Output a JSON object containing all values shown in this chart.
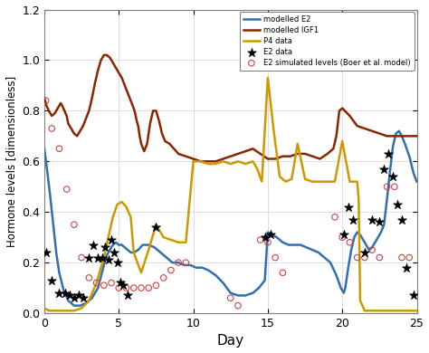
{
  "xlabel": "Day",
  "ylabel": "Hormone levels [dimensionless]",
  "xlim": [
    0,
    25
  ],
  "ylim": [
    0,
    1.2
  ],
  "yticks": [
    0,
    0.2,
    0.4,
    0.6,
    0.8,
    1.0,
    1.2
  ],
  "xticks": [
    0,
    5,
    10,
    15,
    20,
    25
  ],
  "color_E2": "#3070b0",
  "color_IGF1": "#8B2500",
  "color_P4": "#CC9900",
  "color_E2data": "black",
  "color_E2sim": "#cc4444",
  "modelled_E2_x": [
    0,
    0.2,
    0.4,
    0.6,
    0.8,
    1.0,
    1.3,
    1.6,
    2.0,
    2.4,
    2.8,
    3.2,
    3.6,
    4.0,
    4.2,
    4.4,
    4.6,
    4.8,
    5.0,
    5.2,
    5.4,
    5.6,
    5.8,
    6.0,
    6.3,
    6.6,
    7.0,
    7.4,
    7.8,
    8.2,
    8.6,
    9.0,
    9.4,
    9.8,
    10.2,
    10.6,
    11.0,
    11.5,
    12.0,
    12.5,
    13.0,
    13.5,
    14.0,
    14.4,
    14.8,
    15.0,
    15.3,
    15.6,
    16.0,
    16.4,
    16.8,
    17.2,
    17.6,
    18.0,
    18.4,
    18.8,
    19.2,
    19.6,
    19.9,
    20.1,
    20.2,
    20.4,
    20.6,
    20.8,
    21.0,
    21.2,
    21.5,
    21.8,
    22.0,
    22.2,
    22.4,
    22.6,
    22.8,
    23.0,
    23.2,
    23.4,
    23.6,
    23.8,
    24.0,
    24.2,
    24.5,
    24.8,
    25.0
  ],
  "modelled_E2_y": [
    0.65,
    0.56,
    0.46,
    0.35,
    0.24,
    0.16,
    0.09,
    0.05,
    0.03,
    0.03,
    0.04,
    0.06,
    0.1,
    0.19,
    0.23,
    0.25,
    0.27,
    0.28,
    0.27,
    0.27,
    0.26,
    0.25,
    0.24,
    0.24,
    0.25,
    0.27,
    0.27,
    0.26,
    0.24,
    0.22,
    0.2,
    0.2,
    0.19,
    0.19,
    0.18,
    0.18,
    0.17,
    0.15,
    0.12,
    0.08,
    0.07,
    0.07,
    0.08,
    0.1,
    0.13,
    0.32,
    0.31,
    0.3,
    0.28,
    0.27,
    0.27,
    0.27,
    0.26,
    0.25,
    0.24,
    0.22,
    0.2,
    0.15,
    0.1,
    0.08,
    0.1,
    0.18,
    0.25,
    0.3,
    0.32,
    0.31,
    0.28,
    0.25,
    0.26,
    0.28,
    0.3,
    0.32,
    0.35,
    0.45,
    0.56,
    0.66,
    0.71,
    0.72,
    0.7,
    0.67,
    0.62,
    0.55,
    0.52
  ],
  "modelled_IGF1_x": [
    0,
    0.15,
    0.3,
    0.5,
    0.7,
    0.9,
    1.0,
    1.1,
    1.2,
    1.35,
    1.5,
    1.6,
    1.7,
    1.8,
    2.0,
    2.2,
    2.4,
    2.6,
    2.8,
    3.0,
    3.2,
    3.4,
    3.6,
    3.8,
    4.0,
    4.2,
    4.4,
    4.6,
    4.8,
    5.0,
    5.2,
    5.4,
    5.6,
    5.8,
    6.0,
    6.1,
    6.2,
    6.3,
    6.4,
    6.5,
    6.7,
    6.9,
    7.1,
    7.3,
    7.5,
    7.7,
    7.9,
    8.1,
    8.4,
    8.7,
    9.0,
    9.5,
    10.0,
    10.5,
    11.0,
    11.5,
    12.0,
    12.5,
    13.0,
    13.5,
    14.0,
    14.5,
    15.0,
    15.5,
    16.0,
    16.5,
    17.0,
    17.5,
    18.0,
    18.5,
    19.0,
    19.4,
    19.6,
    19.8,
    20.0,
    20.5,
    21.0,
    21.5,
    22.0,
    22.5,
    23.0,
    23.5,
    24.0,
    24.5,
    25.0
  ],
  "modelled_IGF1_y": [
    0.85,
    0.82,
    0.8,
    0.78,
    0.79,
    0.81,
    0.82,
    0.83,
    0.82,
    0.8,
    0.78,
    0.75,
    0.74,
    0.73,
    0.71,
    0.7,
    0.72,
    0.74,
    0.77,
    0.8,
    0.85,
    0.91,
    0.96,
    1.0,
    1.02,
    1.02,
    1.01,
    0.99,
    0.97,
    0.95,
    0.93,
    0.9,
    0.87,
    0.84,
    0.81,
    0.79,
    0.76,
    0.74,
    0.7,
    0.67,
    0.64,
    0.67,
    0.75,
    0.8,
    0.8,
    0.76,
    0.71,
    0.68,
    0.67,
    0.65,
    0.63,
    0.62,
    0.61,
    0.6,
    0.6,
    0.6,
    0.61,
    0.62,
    0.63,
    0.64,
    0.65,
    0.63,
    0.61,
    0.61,
    0.62,
    0.62,
    0.63,
    0.63,
    0.62,
    0.61,
    0.63,
    0.65,
    0.7,
    0.8,
    0.81,
    0.78,
    0.74,
    0.73,
    0.72,
    0.71,
    0.7,
    0.7,
    0.7,
    0.7,
    0.7
  ],
  "P4_x": [
    0,
    0.3,
    0.6,
    1.0,
    1.5,
    2.0,
    2.5,
    3.0,
    3.5,
    4.0,
    4.3,
    4.6,
    4.9,
    5.2,
    5.5,
    5.8,
    6.0,
    6.5,
    7.0,
    7.5,
    8.0,
    8.5,
    9.0,
    9.5,
    10.0,
    10.5,
    11.0,
    11.5,
    12.0,
    12.5,
    13.0,
    13.5,
    14.0,
    14.3,
    14.6,
    15.0,
    15.4,
    15.8,
    16.2,
    16.6,
    17.0,
    17.5,
    18.0,
    18.5,
    19.0,
    19.5,
    20.0,
    20.5,
    21.0,
    21.1,
    21.2,
    21.5,
    22.0,
    22.5,
    23.0,
    23.5,
    24.0,
    24.5,
    25.0
  ],
  "P4_y": [
    0.02,
    0.01,
    0.01,
    0.01,
    0.01,
    0.01,
    0.02,
    0.05,
    0.12,
    0.22,
    0.3,
    0.38,
    0.43,
    0.44,
    0.42,
    0.38,
    0.24,
    0.16,
    0.25,
    0.35,
    0.3,
    0.29,
    0.28,
    0.28,
    0.6,
    0.6,
    0.59,
    0.59,
    0.6,
    0.59,
    0.6,
    0.59,
    0.6,
    0.57,
    0.52,
    0.93,
    0.72,
    0.54,
    0.52,
    0.53,
    0.67,
    0.53,
    0.52,
    0.52,
    0.52,
    0.52,
    0.68,
    0.52,
    0.52,
    0.45,
    0.05,
    0.01,
    0.01,
    0.01,
    0.01,
    0.01,
    0.01,
    0.01,
    0.01
  ],
  "E2_data_x": [
    0.1,
    0.5,
    1.0,
    1.4,
    1.7,
    2.0,
    2.3,
    2.6,
    3.0,
    3.3,
    3.6,
    3.9,
    4.1,
    4.3,
    4.5,
    4.7,
    4.9,
    5.1,
    5.3,
    5.6,
    7.5,
    14.8,
    15.2,
    20.1,
    20.4,
    20.7,
    21.5,
    22.0,
    22.5,
    22.8,
    23.1,
    23.4,
    23.7,
    24.0,
    24.3,
    24.8
  ],
  "E2_data_y": [
    0.24,
    0.13,
    0.08,
    0.08,
    0.07,
    0.06,
    0.07,
    0.06,
    0.22,
    0.27,
    0.22,
    0.22,
    0.26,
    0.21,
    0.29,
    0.24,
    0.2,
    0.12,
    0.11,
    0.07,
    0.34,
    0.3,
    0.31,
    0.31,
    0.42,
    0.37,
    0.24,
    0.37,
    0.36,
    0.57,
    0.63,
    0.54,
    0.43,
    0.37,
    0.18,
    0.07
  ],
  "E2_sim_x": [
    0.1,
    0.5,
    1.0,
    1.5,
    2.0,
    2.5,
    3.0,
    3.5,
    4.0,
    4.5,
    5.0,
    5.5,
    6.0,
    6.5,
    7.0,
    7.5,
    8.0,
    8.5,
    9.0,
    9.5,
    12.5,
    13.0,
    14.5,
    15.0,
    15.5,
    16.0,
    19.5,
    20.0,
    20.5,
    21.0,
    21.5,
    22.0,
    22.5,
    23.0,
    23.5,
    24.0,
    24.5
  ],
  "E2_sim_y": [
    0.84,
    0.73,
    0.65,
    0.49,
    0.35,
    0.22,
    0.14,
    0.12,
    0.11,
    0.12,
    0.1,
    0.1,
    0.1,
    0.1,
    0.1,
    0.11,
    0.14,
    0.17,
    0.2,
    0.2,
    0.06,
    0.03,
    0.29,
    0.28,
    0.22,
    0.16,
    0.38,
    0.3,
    0.28,
    0.22,
    0.22,
    0.25,
    0.22,
    0.5,
    0.5,
    0.22,
    0.22
  ]
}
